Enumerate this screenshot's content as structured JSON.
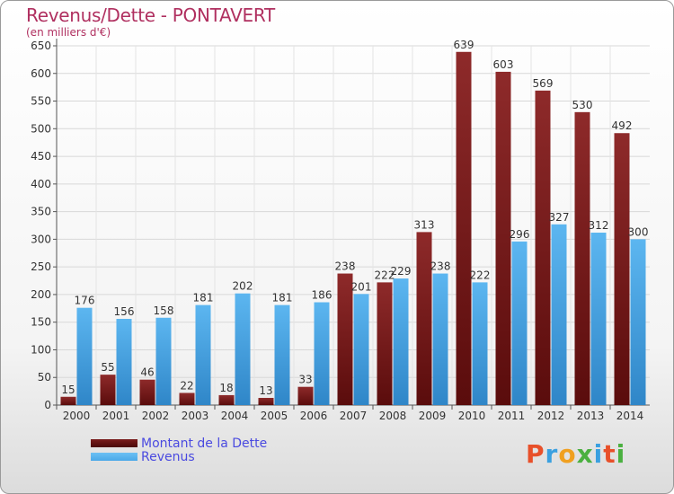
{
  "header": {
    "title": "Revenus/Dette - PONTAVERT",
    "subtitle": "(en milliers d'€)"
  },
  "legend": {
    "items": [
      {
        "label": "Montant de la Dette",
        "color": "#7a1c1c"
      },
      {
        "label": "Revenus",
        "color": "#4aa8e8"
      }
    ]
  },
  "logo": {
    "letters": [
      "P",
      "r",
      "o",
      "x",
      "i",
      "t",
      "i"
    ],
    "colors": [
      "#e8502a",
      "#3aa0e0",
      "#f0a020",
      "#4ab040",
      "#3aa0e0",
      "#e8502a",
      "#4ab040"
    ]
  },
  "chart_data": {
    "type": "bar",
    "title": "Revenus/Dette - PONTAVERT",
    "subtitle": "(en milliers d'€)",
    "categories": [
      "2000",
      "2001",
      "2002",
      "2003",
      "2004",
      "2005",
      "2006",
      "2007",
      "2008",
      "2009",
      "2010",
      "2011",
      "2012",
      "2013",
      "2014"
    ],
    "series": [
      {
        "name": "Montant de la Dette",
        "color": "#7a1c1c",
        "values": [
          15,
          55,
          46,
          22,
          18,
          13,
          33,
          238,
          222,
          313,
          639,
          603,
          569,
          530,
          492
        ]
      },
      {
        "name": "Revenus",
        "color": "#4aa8e8",
        "values": [
          176,
          156,
          158,
          181,
          202,
          181,
          186,
          201,
          229,
          238,
          222,
          296,
          327,
          312,
          300
        ]
      }
    ],
    "ylim": [
      0,
      650
    ],
    "yticks": [
      0,
      50,
      100,
      150,
      200,
      250,
      300,
      350,
      400,
      450,
      500,
      550,
      600,
      650
    ],
    "grid": true,
    "legend_position": "bottom-left"
  }
}
